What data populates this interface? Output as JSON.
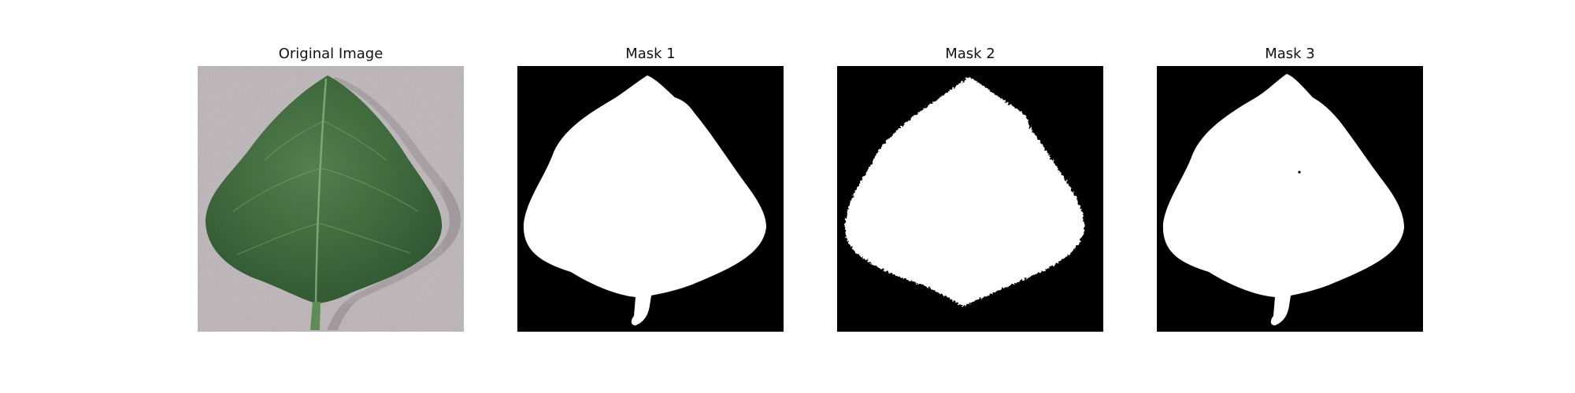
{
  "panels": [
    {
      "title": "Original Image",
      "kind": "photo",
      "subject": "leaf-photo"
    },
    {
      "title": "Mask 1",
      "kind": "mask",
      "variant": "smooth-with-stem"
    },
    {
      "title": "Mask 2",
      "kind": "mask",
      "variant": "rough-edges-no-stem"
    },
    {
      "title": "Mask 3",
      "kind": "mask",
      "variant": "smooth-with-stem-and-speck"
    }
  ],
  "colors": {
    "background": "#ffffff",
    "mask_background": "#000000",
    "mask_foreground": "#ffffff",
    "photo_background": "#c9c2c4",
    "leaf_green": "#3f6a3d",
    "leaf_dark": "#2a4c2b",
    "leaf_light": "#5c8a58"
  }
}
